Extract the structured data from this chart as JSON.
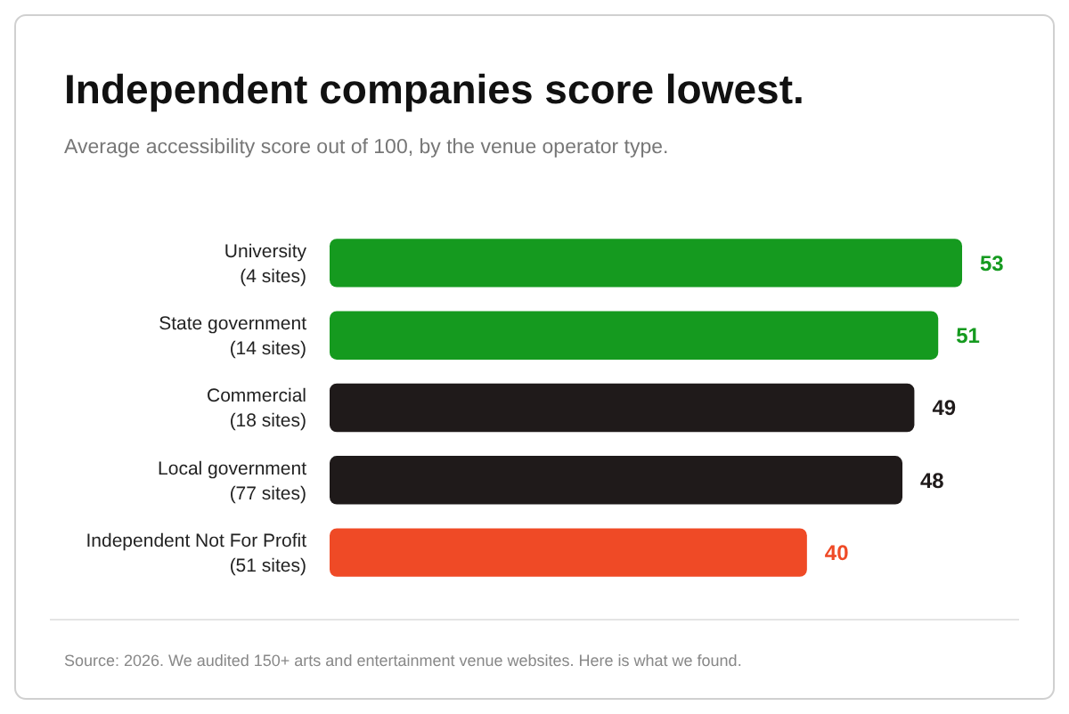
{
  "chart_data": {
    "type": "bar",
    "orientation": "horizontal",
    "title": "Independent companies score lowest.",
    "subtitle": "Average accessibility score out of 100, by the venue operator type.",
    "categories": [
      "University\n(4 sites)",
      "State government\n(14 sites)",
      "Commercial\n(18 sites)",
      "Local government\n(77 sites)",
      "Independent Not For Profit\n(51 sites)"
    ],
    "values": [
      53,
      51,
      49,
      48,
      40
    ],
    "colors": [
      "#159a1f",
      "#159a1f",
      "#1f1a1a",
      "#1f1a1a",
      "#ef4a26"
    ],
    "data_labels": true,
    "annotations": [
      "Source: 2026. We audited 150+ arts and entertainment venue websites. Here is what we found."
    ]
  }
}
